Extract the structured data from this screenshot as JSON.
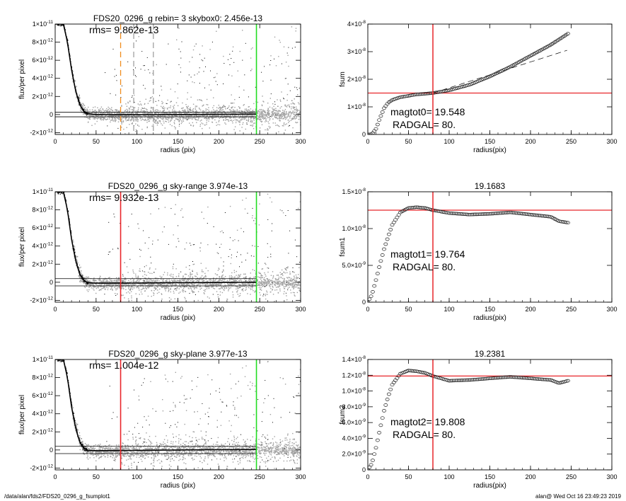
{
  "footer": {
    "path": "/data/alan/fds2/FDS20_0296_g_fsumplot1",
    "stamp": "alan@  Wed Oct 16 23:49:23 2019"
  },
  "colors": {
    "scatter": "#a0a0a0",
    "profile": "#000000",
    "inner_radius_line": "#e8262a",
    "outer_radius_line": "#22dd22",
    "skybox_lines": "#f08c1e",
    "dashed_lines": "#a0a0a0"
  },
  "chart_data": [
    {
      "type": "scatter",
      "panel": "profile",
      "title": "FDS20_0296_g rebin= 3    skybox0:  2.456e-13",
      "annotation": "rms= 9.862e-13",
      "xlabel": "radius (pix)",
      "ylabel": "flux/per pixel",
      "xlim": [
        0,
        300
      ],
      "ylim": [
        -2.2e-12,
        1e-11
      ],
      "xticks": [
        "0",
        "50",
        "100",
        "150",
        "200",
        "250",
        "300"
      ],
      "yticks": [
        {
          "mantissa": "-2×10",
          "exp": "-12",
          "value": -2e-12
        },
        {
          "mantissa": "0",
          "exp": "",
          "value": 0
        },
        {
          "mantissa": "2×10",
          "exp": "-12",
          "value": 2e-12
        },
        {
          "mantissa": "4×10",
          "exp": "-12",
          "value": 4e-12
        },
        {
          "mantissa": "6×10",
          "exp": "-12",
          "value": 6e-12
        },
        {
          "mantissa": "8×10",
          "exp": "-12",
          "value": 8e-12
        },
        {
          "mantissa": "1×10",
          "exp": "-11",
          "value": 1e-11
        }
      ],
      "vlines": [
        {
          "x": 80,
          "style": "dashed",
          "color": "#f08c1e"
        },
        {
          "x": 96,
          "style": "dashed",
          "color": "#a0a0a0"
        },
        {
          "x": 120,
          "style": "dashed",
          "color": "#a0a0a0"
        },
        {
          "x": 246,
          "style": "solid",
          "color": "#22dd22"
        }
      ],
      "hlines": [
        2.5e-13,
        -2.5e-13
      ],
      "profile": {
        "radius": [
          0,
          5,
          10,
          15,
          20,
          25,
          30,
          35,
          40,
          50,
          80,
          150,
          246
        ],
        "flux": [
          1e-11,
          1e-11,
          1e-11,
          8e-12,
          5e-12,
          2.6e-12,
          1.1e-12,
          3.5e-13,
          1e-13,
          0,
          -2e-14,
          0,
          5e-14
        ]
      }
    },
    {
      "type": "scatter",
      "panel": "fsum",
      "title": "",
      "annotation": "magtot0=  19.548",
      "annotation2": "RADGAL=     80.",
      "xlabel": "radius(pix)",
      "ylabel": "fsum",
      "xlim": [
        0,
        300
      ],
      "ylim": [
        0,
        4e-08
      ],
      "xticks": [
        "0",
        "50",
        "100",
        "150",
        "200",
        "250",
        "300"
      ],
      "yticks": [
        {
          "mantissa": "0",
          "exp": "",
          "value": 0
        },
        {
          "mantissa": "1×10",
          "exp": "-8",
          "value": 1e-08
        },
        {
          "mantissa": "2×10",
          "exp": "-8",
          "value": 2e-08
        },
        {
          "mantissa": "3×10",
          "exp": "-8",
          "value": 3e-08
        },
        {
          "mantissa": "4×10",
          "exp": "-8",
          "value": 4e-08
        }
      ],
      "vlines": [
        {
          "x": 80,
          "style": "solid",
          "color": "#e8262a"
        }
      ],
      "hlines": [
        {
          "y": 1.5e-08,
          "color": "#e8262a"
        }
      ],
      "dashed_line": {
        "radius": [
          80,
          245
        ],
        "fsum": [
          1.5e-08,
          3.05e-08
        ]
      },
      "series": [
        {
          "radius": [
            0,
            5,
            10,
            15,
            20,
            25,
            30,
            40,
            50,
            60,
            80,
            100,
            125,
            150,
            175,
            200,
            225,
            246
          ],
          "fsum": [
            0,
            1e-10,
            2e-09,
            6e-09,
            9.5e-09,
            1.15e-08,
            1.25e-08,
            1.35e-08,
            1.4e-08,
            1.45e-08,
            1.5e-08,
            1.6e-08,
            1.8e-08,
            2.1e-08,
            2.45e-08,
            2.85e-08,
            3.25e-08,
            3.65e-08
          ]
        }
      ]
    },
    {
      "type": "scatter",
      "panel": "profile",
      "title": "FDS20_0296_g sky-range  3.974e-13",
      "annotation": "rms= 9.932e-13",
      "xlabel": "radius (pix)",
      "ylabel": "flux/per pixel",
      "xlim": [
        0,
        300
      ],
      "ylim": [
        -2.2e-12,
        1e-11
      ],
      "xticks": [
        "0",
        "50",
        "100",
        "150",
        "200",
        "250",
        "300"
      ],
      "yticks": [
        {
          "mantissa": "-2×10",
          "exp": "-12",
          "value": -2e-12
        },
        {
          "mantissa": "0",
          "exp": "",
          "value": 0
        },
        {
          "mantissa": "2×10",
          "exp": "-12",
          "value": 2e-12
        },
        {
          "mantissa": "4×10",
          "exp": "-12",
          "value": 4e-12
        },
        {
          "mantissa": "6×10",
          "exp": "-12",
          "value": 6e-12
        },
        {
          "mantissa": "8×10",
          "exp": "-12",
          "value": 8e-12
        },
        {
          "mantissa": "1×10",
          "exp": "-11",
          "value": 1e-11
        }
      ],
      "vlines": [
        {
          "x": 80,
          "style": "solid",
          "color": "#e8262a"
        },
        {
          "x": 246,
          "style": "solid",
          "color": "#22dd22"
        }
      ],
      "hlines": [
        4e-13,
        -4e-13
      ],
      "profile": {
        "radius": [
          0,
          5,
          10,
          15,
          20,
          25,
          30,
          35,
          40,
          50,
          80,
          150,
          246
        ],
        "flux": [
          1e-11,
          1e-11,
          1e-11,
          8e-12,
          4.8e-12,
          2.4e-12,
          9e-13,
          2e-13,
          -5e-14,
          -1e-13,
          -1e-13,
          -5e-14,
          0
        ]
      }
    },
    {
      "type": "scatter",
      "panel": "fsum",
      "title": "19.1683",
      "annotation": "magtot1=  19.764",
      "annotation2": "RADGAL=     80.",
      "xlabel": "radius(pix)",
      "ylabel": "fsum1",
      "xlim": [
        0,
        300
      ],
      "ylim": [
        0,
        1.5e-08
      ],
      "xticks": [
        "0",
        "50",
        "100",
        "150",
        "200",
        "250",
        "300"
      ],
      "yticks": [
        {
          "mantissa": "0",
          "exp": "",
          "value": 0
        },
        {
          "mantissa": "5.0×10",
          "exp": "-9",
          "value": 5e-09
        },
        {
          "mantissa": "1.0×10",
          "exp": "-8",
          "value": 1e-08
        },
        {
          "mantissa": "1.5×10",
          "exp": "-8",
          "value": 1.5e-08
        }
      ],
      "vlines": [
        {
          "x": 80,
          "style": "solid",
          "color": "#e8262a"
        }
      ],
      "hlines": [
        {
          "y": 1.25e-08,
          "color": "#e8262a"
        }
      ],
      "series": [
        {
          "radius": [
            0,
            5,
            10,
            15,
            20,
            25,
            30,
            40,
            50,
            60,
            70,
            80,
            100,
            125,
            150,
            175,
            200,
            225,
            235,
            246
          ],
          "fsum": [
            0,
            1e-09,
            3e-09,
            5.2e-09,
            7.2e-09,
            8.9e-09,
            1.05e-08,
            1.22e-08,
            1.28e-08,
            1.29e-08,
            1.28e-08,
            1.25e-08,
            1.21e-08,
            1.19e-08,
            1.2e-08,
            1.22e-08,
            1.19e-08,
            1.16e-08,
            1.1e-08,
            1.08e-08
          ]
        }
      ]
    },
    {
      "type": "scatter",
      "panel": "profile",
      "title": "FDS20_0296_g sky-plane  3.977e-13",
      "annotation": "rms= 1.004e-12",
      "xlabel": "radius (pix)",
      "ylabel": "flux/per pixel",
      "xlim": [
        0,
        300
      ],
      "ylim": [
        -2.2e-12,
        1e-11
      ],
      "xticks": [
        "0",
        "50",
        "100",
        "150",
        "200",
        "250",
        "300"
      ],
      "yticks": [
        {
          "mantissa": "-2×10",
          "exp": "-12",
          "value": -2e-12
        },
        {
          "mantissa": "0",
          "exp": "",
          "value": 0
        },
        {
          "mantissa": "2×10",
          "exp": "-12",
          "value": 2e-12
        },
        {
          "mantissa": "4×10",
          "exp": "-12",
          "value": 4e-12
        },
        {
          "mantissa": "6×10",
          "exp": "-12",
          "value": 6e-12
        },
        {
          "mantissa": "8×10",
          "exp": "-12",
          "value": 8e-12
        },
        {
          "mantissa": "1×10",
          "exp": "-11",
          "value": 1e-11
        }
      ],
      "vlines": [
        {
          "x": 80,
          "style": "solid",
          "color": "#e8262a"
        },
        {
          "x": 246,
          "style": "solid",
          "color": "#22dd22"
        }
      ],
      "hlines": [
        4e-13,
        -4e-13
      ],
      "profile": {
        "radius": [
          0,
          5,
          10,
          15,
          20,
          25,
          30,
          35,
          40,
          50,
          80,
          150,
          246
        ],
        "flux": [
          1e-11,
          1e-11,
          1e-11,
          8e-12,
          4.8e-12,
          2.4e-12,
          9e-13,
          2e-13,
          -5e-14,
          -8e-14,
          -6e-14,
          0,
          5e-14
        ]
      }
    },
    {
      "type": "scatter",
      "panel": "fsum",
      "title": "19.2381",
      "annotation": "magtot2=  19.808",
      "annotation2": "RADGAL=     80.",
      "xlabel": "radius(pix)",
      "ylabel": "fsum2",
      "xlim": [
        0,
        300
      ],
      "ylim": [
        0,
        1.4e-08
      ],
      "xticks": [
        "0",
        "50",
        "100",
        "150",
        "200",
        "250",
        "300"
      ],
      "yticks": [
        {
          "mantissa": "0",
          "exp": "",
          "value": 0
        },
        {
          "mantissa": "2.0×10",
          "exp": "-9",
          "value": 2e-09
        },
        {
          "mantissa": "4.0×10",
          "exp": "-9",
          "value": 4e-09
        },
        {
          "mantissa": "6.0×10",
          "exp": "-9",
          "value": 6e-09
        },
        {
          "mantissa": "8.0×10",
          "exp": "-9",
          "value": 8e-09
        },
        {
          "mantissa": "1.0×10",
          "exp": "-8",
          "value": 1e-08
        },
        {
          "mantissa": "1.2×10",
          "exp": "-8",
          "value": 1.2e-08
        },
        {
          "mantissa": "1.4×10",
          "exp": "-8",
          "value": 1.4e-08
        }
      ],
      "vlines": [
        {
          "x": 80,
          "style": "solid",
          "color": "#e8262a"
        }
      ],
      "hlines": [
        {
          "y": 1.19e-08,
          "color": "#e8262a"
        }
      ],
      "series": [
        {
          "radius": [
            0,
            5,
            10,
            15,
            20,
            25,
            30,
            40,
            50,
            60,
            70,
            80,
            100,
            125,
            150,
            175,
            200,
            225,
            235,
            246
          ],
          "fsum": [
            0,
            8e-10,
            2.8e-09,
            5.2e-09,
            7.5e-09,
            9.3e-09,
            1.08e-08,
            1.22e-08,
            1.26e-08,
            1.25e-08,
            1.23e-08,
            1.19e-08,
            1.13e-08,
            1.14e-08,
            1.16e-08,
            1.18e-08,
            1.16e-08,
            1.14e-08,
            1.1e-08,
            1.13e-08
          ]
        }
      ]
    }
  ]
}
